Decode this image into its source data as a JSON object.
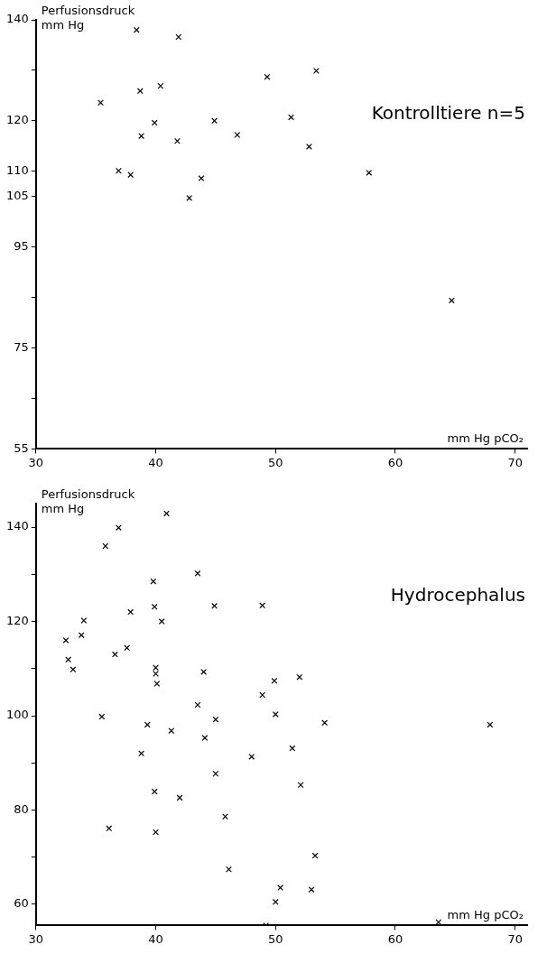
{
  "chart_data": [
    {
      "type": "scatter",
      "ylabel": "Perfusionsdruck\nmm Hg",
      "xlabel": "mm Hg pCO₂",
      "annotations": [
        "Kontrolltiere n=5"
      ],
      "marker": "cross",
      "grid": false,
      "legend": false,
      "xlim": [
        30,
        71
      ],
      "xticks": [
        30,
        40,
        50,
        60,
        70
      ],
      "ylim": [
        55,
        140
      ],
      "yticks": [
        55,
        {
          "value": 65,
          "label": null
        },
        75,
        {
          "value": 85,
          "label": null
        },
        95,
        105,
        110,
        120,
        {
          "value": 130,
          "label": null
        },
        140
      ],
      "series": [
        {
          "color": "#000000",
          "x": [
            38.4,
            41.9,
            35.4,
            38.7,
            40.4,
            49.3,
            53.4,
            39.9,
            44.9,
            51.3,
            38.8,
            41.8,
            46.8,
            52.8,
            36.9,
            37.9,
            43.8,
            42.8,
            57.8,
            64.7
          ],
          "values": [
            138.0,
            136.6,
            123.6,
            125.9,
            126.9,
            128.7,
            129.9,
            119.6,
            120.0,
            120.7,
            117.0,
            116.0,
            117.2,
            114.9,
            110.1,
            109.3,
            108.6,
            104.7,
            109.7,
            84.4
          ]
        }
      ]
    },
    {
      "type": "scatter",
      "ylabel": "Perfusionsdruck\nmm Hg",
      "xlabel": "mm Hg pCO₂",
      "annotations": [
        "Hydrocephalus"
      ],
      "marker": "cross",
      "grid": false,
      "legend": false,
      "xlim": [
        30,
        71
      ],
      "xticks": [
        30,
        40,
        50,
        60,
        70
      ],
      "ylim": [
        55.5,
        145
      ],
      "yticks": [
        {
          "value": 60,
          "label": "60"
        },
        {
          "value": 70,
          "label": null
        },
        80,
        {
          "value": 90,
          "label": null
        },
        100,
        {
          "value": 110,
          "label": null
        },
        120,
        {
          "value": 130,
          "label": null
        },
        140
      ],
      "series": [
        {
          "color": "#000000",
          "x": [
            40.9,
            36.9,
            35.8,
            43.5,
            39.8,
            39.9,
            44.9,
            48.9,
            37.9,
            34.0,
            40.5,
            32.5,
            33.8,
            32.7,
            33.1,
            37.6,
            36.6,
            40.0,
            40.0,
            40.1,
            44.0,
            49.9,
            52.0,
            48.9,
            43.5,
            35.5,
            50.0,
            45.0,
            39.3,
            54.1,
            67.9,
            41.3,
            44.1,
            38.8,
            48.0,
            51.4,
            45.0,
            52.1,
            39.9,
            42.0,
            45.8,
            36.1,
            40.0,
            53.3,
            46.1,
            50.4,
            53.0,
            50.0,
            49.2,
            63.6
          ],
          "values": [
            142.9,
            139.9,
            136.0,
            130.2,
            128.5,
            123.1,
            123.3,
            123.4,
            122.0,
            120.2,
            120.0,
            116.0,
            117.1,
            111.9,
            109.8,
            114.4,
            113.0,
            110.2,
            108.9,
            106.8,
            109.3,
            107.4,
            108.2,
            104.4,
            102.3,
            99.8,
            100.3,
            99.2,
            98.1,
            98.5,
            98.1,
            96.8,
            95.3,
            92.0,
            91.3,
            93.1,
            87.7,
            85.3,
            83.9,
            82.6,
            78.6,
            76.1,
            75.3,
            70.3,
            67.4,
            63.5,
            63.1,
            60.5,
            55.5,
            56.2
          ]
        }
      ]
    }
  ]
}
